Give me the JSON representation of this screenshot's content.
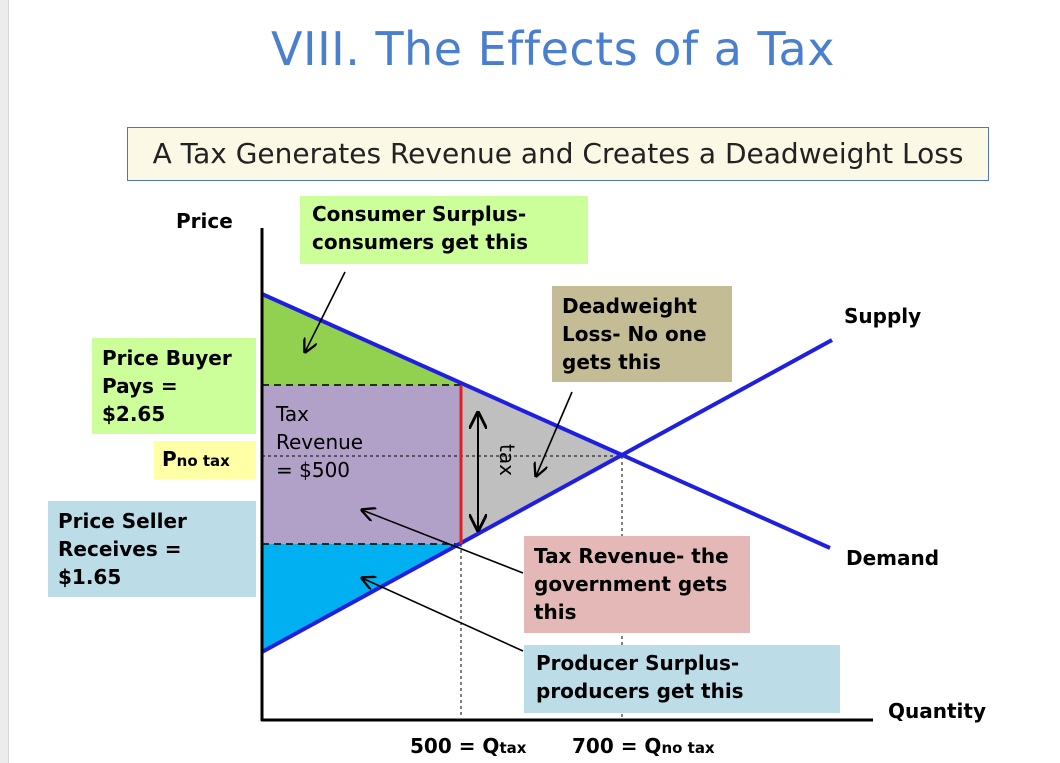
{
  "slide": {
    "title": "VIII. The Effects of a Tax",
    "subtitle": "A Tax Generates Revenue and Creates a Deadweight Loss"
  },
  "axes": {
    "y_label": "Price",
    "x_label": "Quantity"
  },
  "curves": {
    "supply_label": "Supply",
    "demand_label": "Demand"
  },
  "price_labels": {
    "buyer_line1": "Price Buyer",
    "buyer_line2": "Pays =",
    "buyer_value": "$2.65",
    "no_tax_main": "P",
    "no_tax_sub": "no tax",
    "seller_line1": "Price Seller",
    "seller_line2": "Receives =",
    "seller_value": "$1.65"
  },
  "quantity_labels": {
    "q_tax_main": "500 = Q",
    "q_tax_sub": "tax",
    "q_no_tax_main": "700 = Q",
    "q_no_tax_sub": "no tax"
  },
  "region_labels": {
    "tax_revenue_line1": "Tax",
    "tax_revenue_line2": "Revenue",
    "tax_revenue_line3": "= $500",
    "tax_wedge": "tax"
  },
  "callouts": {
    "consumer_line1": "Consumer Surplus-",
    "consumer_line2": "consumers get this",
    "deadweight_line1": "Deadweight",
    "deadweight_line2": "Loss- No one",
    "deadweight_line3": "gets this",
    "taxrev_line1": "Tax Revenue- the",
    "taxrev_line2": "government gets",
    "taxrev_line3": "this",
    "producer_line1": "Producer Surplus-",
    "producer_line2": "producers get this"
  },
  "colors": {
    "consumer_surplus": "#92d050",
    "tax_revenue": "#b1a0c7",
    "deadweight_loss": "#bfbfbf",
    "producer_surplus": "#00b0f0",
    "curves": "#1f1fe0",
    "tax_wedge": "#e02020",
    "title": "#4a7fd0"
  }
}
